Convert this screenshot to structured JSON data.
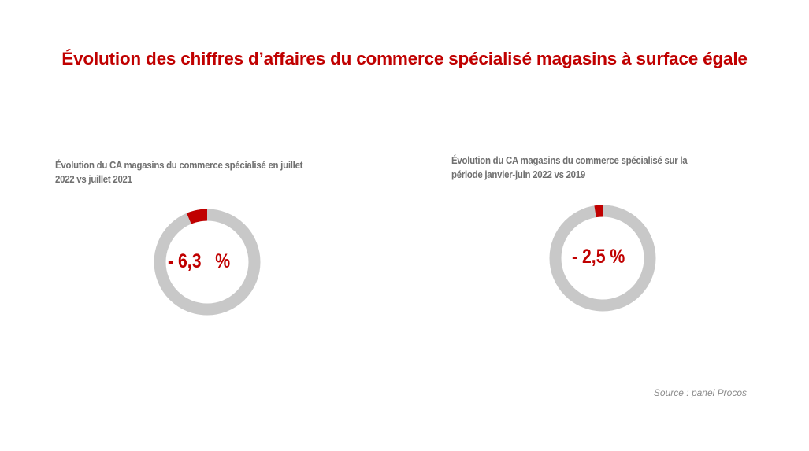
{
  "slide": {
    "title": "Évolution des chiffres d’affaires du commerce spécialisé magasins à surface égale",
    "source": "Source : panel Procos"
  },
  "colors": {
    "accent": "#c00000",
    "ring": "#c8c8c8",
    "caption": "#707070"
  },
  "chart_data": [
    {
      "type": "pie",
      "title": "Évolution du CA magasins du commerce spécialisé en juillet 2022 vs juillet 2021",
      "title_lines": [
        "Évolution du CA magasins du commerce spécialisé en juillet",
        "2022 vs juillet 2021"
      ],
      "value": -6.3,
      "center_label": "- 6,3   %"
    },
    {
      "type": "pie",
      "title": "Évolution du CA magasins du commerce spécialisé sur la période janvier-juin 2022 vs 2019",
      "title_lines": [
        "Évolution du CA magasins du commerce spécialisé sur la",
        "période janvier-juin 2022 vs 2019"
      ],
      "value": -2.5,
      "center_label": "- 2,5 %"
    }
  ]
}
